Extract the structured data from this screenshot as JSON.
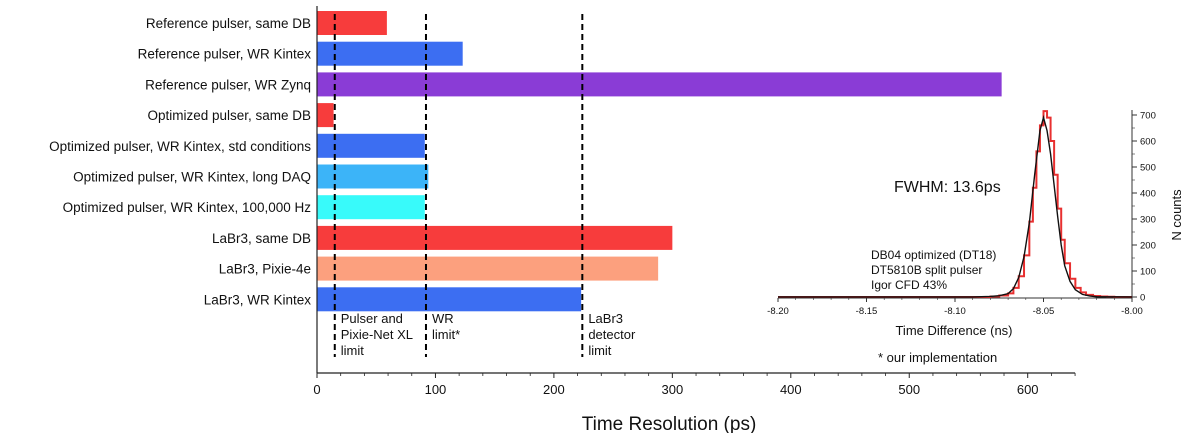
{
  "chart_data": [
    {
      "type": "bar",
      "orientation": "horizontal",
      "xlabel": "Time Resolution (ps)",
      "xlim": [
        0,
        640
      ],
      "xticks": [
        0,
        100,
        200,
        300,
        400,
        500,
        600
      ],
      "categories": [
        "Reference pulser, same DB",
        "Reference pulser, WR Kintex",
        "Reference pulser, WR Zynq",
        "Optimized pulser, same DB",
        "Optimized pulser, WR Kintex, std conditions",
        "Optimized pulser, WR Kintex, long DAQ",
        "Optimized pulser, WR Kintex, 100,000 Hz",
        "LaBr3, same DB",
        "LaBr3, Pixie-4e",
        "LaBr3, WR Kintex"
      ],
      "values": [
        59,
        123,
        578,
        14,
        91,
        94,
        91,
        300,
        288,
        223
      ],
      "colors": [
        "#f73c3c",
        "#3c6ef2",
        "#8a3cd6",
        "#f73c3c",
        "#3c6ef2",
        "#3cb4f8",
        "#38fafa",
        "#f73c3c",
        "#fca07e",
        "#3c6ef2"
      ],
      "reference_lines": [
        {
          "x": 15,
          "label": [
            "Pulser and",
            "Pixie-Net XL",
            "limit"
          ]
        },
        {
          "x": 92,
          "label": [
            "WR",
            "limit*"
          ]
        },
        {
          "x": 224,
          "label": [
            "LaBr3",
            "detector",
            "limit"
          ]
        }
      ],
      "footnote": "* our implementation"
    },
    {
      "type": "line",
      "xlabel": "Time Difference (ns)",
      "ylabel": "N counts",
      "xlim": [
        -8.2,
        -8.0
      ],
      "ylim": [
        0,
        700
      ],
      "xticks": [
        -8.2,
        -8.15,
        -8.1,
        -8.05,
        -8.0
      ],
      "xtick_labels": [
        "-8.20",
        "-8.15",
        "-8.10",
        "-8.05",
        "-8.00"
      ],
      "yticks": [
        0,
        100,
        200,
        300,
        400,
        500,
        600,
        700
      ],
      "y_axis_side": "right",
      "annotation": "FWHM: 13.6ps",
      "legend_text": [
        "DB04 optimized (DT18)",
        "DT5810B split pulser",
        "Igor CFD 43%"
      ],
      "series": [
        {
          "color": "#e83030",
          "style": "step",
          "x": [
            -8.2,
            -8.09,
            -8.08,
            -8.075,
            -8.07,
            -8.067,
            -8.064,
            -8.061,
            -8.058,
            -8.056,
            -8.054,
            -8.052,
            -8.05,
            -8.048,
            -8.046,
            -8.044,
            -8.042,
            -8.04,
            -8.038,
            -8.035,
            -8.032,
            -8.029,
            -8.026,
            -8.022,
            -8.018,
            -8.014,
            -8.01,
            -8.0
          ],
          "y": [
            0,
            0,
            2,
            6,
            14,
            35,
            80,
            160,
            290,
            420,
            560,
            660,
            715,
            690,
            600,
            470,
            340,
            220,
            130,
            70,
            35,
            18,
            8,
            4,
            2,
            1,
            0,
            0
          ]
        },
        {
          "color": "#111111",
          "style": "line",
          "x": [
            -8.2,
            -8.09,
            -8.08,
            -8.075,
            -8.07,
            -8.067,
            -8.064,
            -8.061,
            -8.058,
            -8.055,
            -8.052,
            -8.05,
            -8.048,
            -8.046,
            -8.044,
            -8.042,
            -8.04,
            -8.038,
            -8.035,
            -8.032,
            -8.028,
            -8.024,
            -8.02,
            -8.0
          ],
          "y": [
            0,
            0,
            2,
            5,
            13,
            32,
            75,
            155,
            285,
            470,
            640,
            690,
            640,
            550,
            430,
            310,
            200,
            120,
            60,
            28,
            10,
            4,
            1,
            0
          ]
        }
      ]
    }
  ]
}
